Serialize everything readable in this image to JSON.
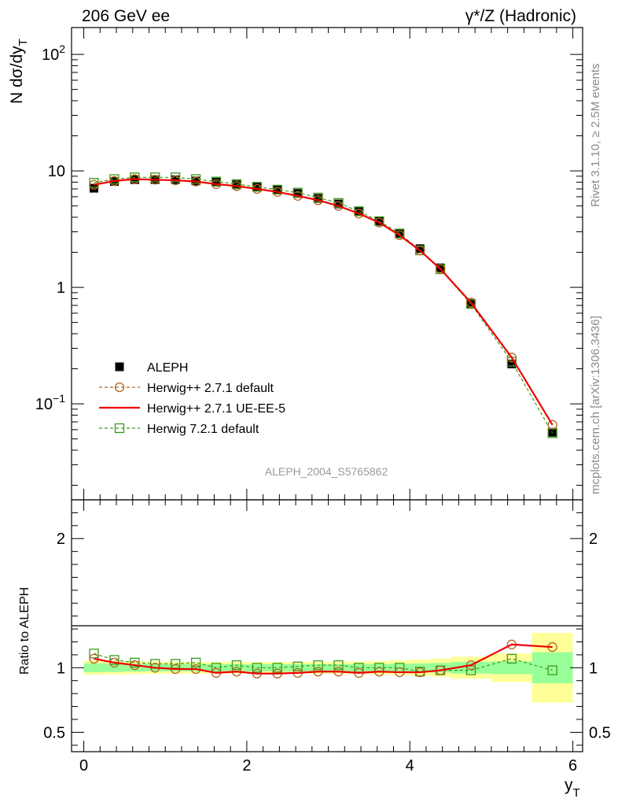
{
  "header": {
    "left_title": "206 GeV ee",
    "right_title": "γ*/Z (Hadronic)"
  },
  "side_labels": {
    "rivet": "Rivet 3.1.10, ≥ 2.5M events",
    "mcplots": "mcplots.cern.ch [arXiv:1306.3436]"
  },
  "watermark": "ALEPH_2004_S5765862",
  "chart_data": [
    {
      "type": "scatter",
      "panel": "main",
      "ylabel": "N dσ/dy_T",
      "yscale": "log",
      "ylim": [
        0.015,
        170
      ],
      "xlim": [
        -0.15,
        6.12
      ],
      "y_tick_labels": [
        "10^-1",
        "1",
        "10",
        "10^2"
      ],
      "legend_position": "bottom-left",
      "x": [
        0.125,
        0.375,
        0.625,
        0.875,
        1.125,
        1.375,
        1.625,
        1.875,
        2.125,
        2.375,
        2.625,
        2.875,
        3.125,
        3.375,
        3.625,
        3.875,
        4.125,
        4.375,
        4.75,
        5.25,
        5.75
      ],
      "series": [
        {
          "name": "ALEPH",
          "color": "#000000",
          "marker": "filled-square",
          "values": [
            7.1,
            8.1,
            8.4,
            8.4,
            8.4,
            8.2,
            8.0,
            7.6,
            7.3,
            6.9,
            6.4,
            5.8,
            5.2,
            4.5,
            3.7,
            2.9,
            2.15,
            1.47,
            0.73,
            0.22,
            0.057
          ]
        },
        {
          "name": "Herwig++ 2.7.1 default",
          "color": "#b5651d",
          "marker": "open-circle",
          "dashed": true,
          "values": [
            7.6,
            8.2,
            8.5,
            8.4,
            8.3,
            8.1,
            7.7,
            7.4,
            7.0,
            6.6,
            6.1,
            5.6,
            5.0,
            4.3,
            3.6,
            2.8,
            2.07,
            1.44,
            0.74,
            0.25,
            0.066
          ]
        },
        {
          "name": "Herwig++ 2.7.1 UE-EE-5",
          "color": "#ee0000",
          "marker": "none",
          "dashed": false,
          "values": [
            7.6,
            8.2,
            8.5,
            8.4,
            8.3,
            8.1,
            7.7,
            7.4,
            7.0,
            6.6,
            6.1,
            5.6,
            5.0,
            4.3,
            3.6,
            2.8,
            2.07,
            1.44,
            0.74,
            0.25,
            0.066
          ]
        },
        {
          "name": "Herwig 7.2.1 default",
          "color": "#3a9a1a",
          "marker": "open-square",
          "dashed": true,
          "values": [
            7.9,
            8.5,
            8.8,
            8.8,
            8.8,
            8.5,
            8.1,
            7.7,
            7.3,
            6.9,
            6.5,
            5.9,
            5.3,
            4.5,
            3.7,
            2.9,
            2.08,
            1.43,
            0.72,
            0.23,
            0.056
          ]
        }
      ]
    },
    {
      "type": "line",
      "panel": "ratio",
      "ylabel": "Ratio to ALEPH",
      "xlabel": "y_T",
      "ylim": [
        0.35,
        2.3
      ],
      "xlim": [
        -0.15,
        6.12
      ],
      "x_ticks": [
        0,
        2,
        4,
        6
      ],
      "x_tick_labels": [
        "0",
        "2",
        "4",
        "6"
      ],
      "y_tick_labels": [
        "0.5",
        "1",
        "2"
      ],
      "bands": {
        "bin_edges": [
          0,
          0.25,
          0.5,
          0.75,
          1.0,
          1.25,
          1.5,
          1.75,
          2.0,
          2.25,
          2.5,
          2.75,
          3.0,
          3.25,
          3.5,
          3.75,
          4.0,
          4.25,
          4.5,
          5.0,
          5.5,
          6.0
        ],
        "inner_half_width": [
          0.035,
          0.033,
          0.03,
          0.028,
          0.028,
          0.028,
          0.028,
          0.028,
          0.028,
          0.028,
          0.028,
          0.028,
          0.028,
          0.028,
          0.028,
          0.03,
          0.033,
          0.037,
          0.045,
          0.05,
          0.12
        ],
        "outer_half_width": [
          0.055,
          0.052,
          0.05,
          0.048,
          0.046,
          0.045,
          0.045,
          0.045,
          0.045,
          0.045,
          0.045,
          0.046,
          0.047,
          0.048,
          0.052,
          0.057,
          0.062,
          0.07,
          0.085,
          0.11,
          0.27
        ],
        "inner_color": "#99ff99",
        "outer_color": "#ffff99"
      },
      "series": [
        {
          "name": "Herwig++ 2.7.1 default",
          "color": "#b5651d",
          "marker": "open-circle",
          "dashed": true,
          "values": [
            1.07,
            1.04,
            1.02,
            1.0,
            0.99,
            0.99,
            0.96,
            0.97,
            0.955,
            0.955,
            0.96,
            0.97,
            0.97,
            0.96,
            0.97,
            0.965,
            0.965,
            0.98,
            1.02,
            1.18,
            1.16
          ]
        },
        {
          "name": "Herwig++ 2.7.1 UE-EE-5",
          "color": "#ee0000",
          "marker": "none",
          "dashed": false,
          "values": [
            1.07,
            1.04,
            1.02,
            1.0,
            0.99,
            0.99,
            0.96,
            0.97,
            0.955,
            0.955,
            0.96,
            0.97,
            0.97,
            0.96,
            0.97,
            0.965,
            0.965,
            0.98,
            1.02,
            1.18,
            1.16
          ]
        },
        {
          "name": "Herwig 7.2.1 default",
          "color": "#3a9a1a",
          "marker": "open-square",
          "dashed": true,
          "values": [
            1.11,
            1.06,
            1.04,
            1.03,
            1.03,
            1.04,
            1.0,
            1.02,
            1.0,
            1.0,
            1.01,
            1.02,
            1.02,
            1.0,
            1.0,
            1.0,
            0.97,
            0.98,
            0.98,
            1.07,
            0.98
          ]
        }
      ]
    }
  ]
}
